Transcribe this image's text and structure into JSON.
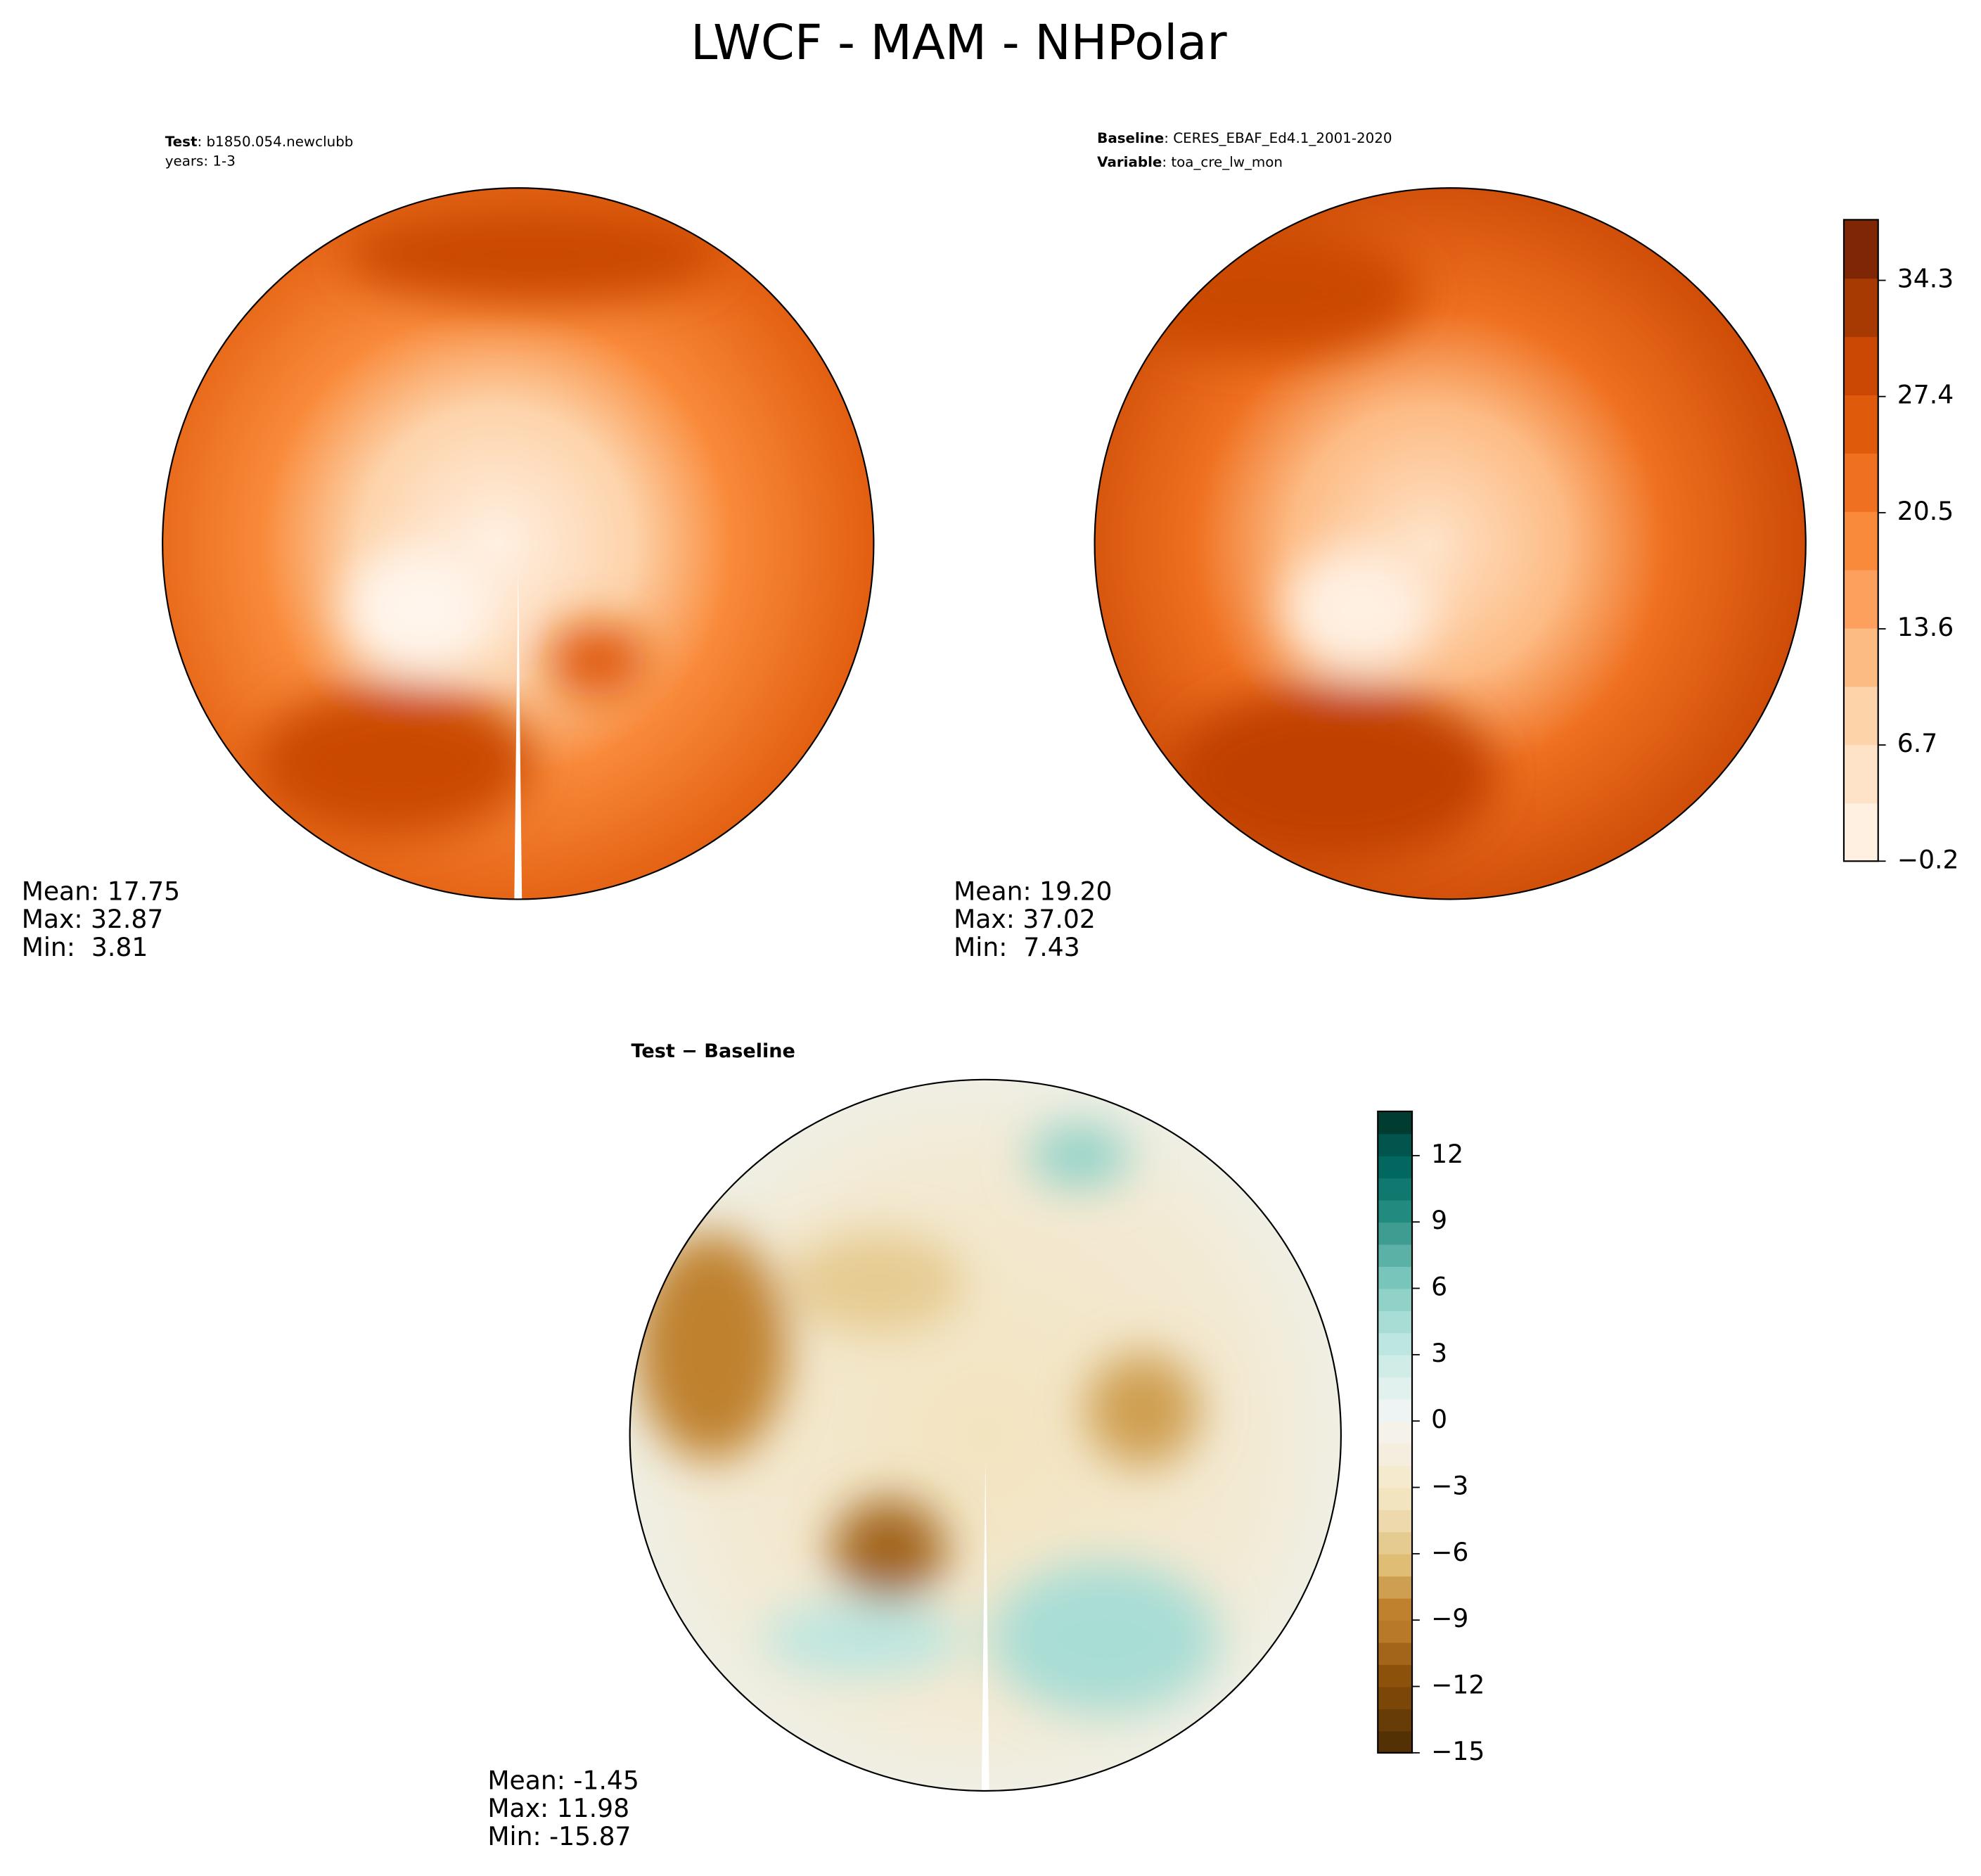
{
  "title": "LWCF - MAM - NHPolar",
  "panels": [
    {
      "header": [
        {
          "bold": "Test",
          "text": ": b1850.054.newclubb"
        },
        {
          "text": "years: 1-3"
        }
      ],
      "stats": [
        "Mean: 17.75",
        "Max: 32.87",
        "Min:  3.81"
      ]
    },
    {
      "header": [
        {
          "bold": "Baseline",
          "text": ": CERES_EBAF_Ed4.1_2001-2020"
        },
        {
          "bold": "Variable",
          "text": ": toa_cre_lw_mon"
        }
      ],
      "stats": [
        "Mean: 19.20",
        "Max: 37.02",
        "Min:  7.43"
      ]
    },
    {
      "header": [
        {
          "bold": "Test − Baseline"
        }
      ],
      "stats": [
        "Mean: -1.45",
        "Max: 11.98",
        "Min: -15.87"
      ]
    }
  ],
  "colorbars": [
    {
      "lim": [
        -0.2,
        37.9
      ],
      "ticks": [
        {
          "value": -0.2,
          "label": "−0.2"
        },
        6.7,
        13.6,
        20.5,
        27.4,
        34.3
      ],
      "colors": [
        "#fff0e2",
        "#fee3c8",
        "#fdd3aa",
        "#fdbb84",
        "#fda05d",
        "#f98a3a",
        "#ef7020",
        "#e05a0c",
        "#ca4804",
        "#a73a03",
        "#7f2704"
      ]
    },
    {
      "lim": [
        -15,
        14
      ],
      "ticks": [
        {
          "value": -15,
          "label": "−15"
        },
        {
          "value": -12,
          "label": "−12"
        },
        {
          "value": -9,
          "label": "−9"
        },
        {
          "value": -6,
          "label": "−6"
        },
        {
          "value": -3,
          "label": "−3"
        },
        0,
        3,
        6,
        9,
        12
      ],
      "colors": [
        "#543005",
        "#673c07",
        "#7b4709",
        "#8c510a",
        "#a2651a",
        "#b87a29",
        "#bf812d",
        "#cf9f51",
        "#dfbd74",
        "#e6cb91",
        "#edd9ab",
        "#f3e4c0",
        "#f5e9ce",
        "#f5eedf",
        "#f5f2ea",
        "#eef4f3",
        "#e0f1ee",
        "#cfece7",
        "#bde6e0",
        "#a8ddd5",
        "#90d2c8",
        "#78c6bb",
        "#5bb1a6",
        "#3f9c90",
        "#238a80",
        "#11786f",
        "#02675f",
        "#01554c",
        "#003c30"
      ]
    }
  ]
}
